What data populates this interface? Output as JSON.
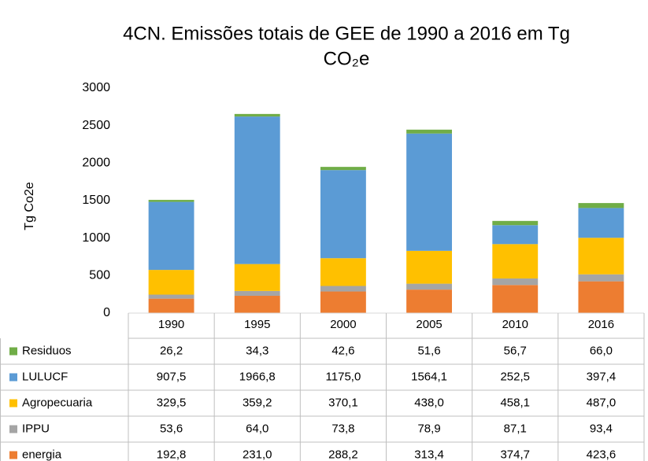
{
  "chart_data": {
    "type": "stacked_bar",
    "title": [
      "4CN. Emissões totais de GEE de 1990 a 2016 em Tg",
      "CO₂e"
    ],
    "y_label": "Tg Co2e",
    "categories": [
      "1990",
      "1995",
      "2000",
      "2005",
      "2010",
      "2016"
    ],
    "ylim": [
      0,
      3000
    ],
    "yticks": [
      0,
      500,
      1000,
      1500,
      2000,
      2500,
      3000
    ],
    "grid": false,
    "series": [
      {
        "name": "energia",
        "color": "#ed7d31",
        "values": [
          192.8,
          231.0,
          288.2,
          313.4,
          374.7,
          423.6
        ],
        "value_labels": [
          "192,8",
          "231,0",
          "288,2",
          "313,4",
          "374,7",
          "423,6"
        ]
      },
      {
        "name": "IPPU",
        "color": "#a5a5a5",
        "values": [
          53.6,
          64.0,
          73.8,
          78.9,
          87.1,
          93.4
        ],
        "value_labels": [
          "53,6",
          "64,0",
          "73,8",
          "78,9",
          "87,1",
          "93,4"
        ]
      },
      {
        "name": "Agropecuaria",
        "color": "#ffc000",
        "values": [
          329.5,
          359.2,
          370.1,
          438.0,
          458.1,
          487.0
        ],
        "value_labels": [
          "329,5",
          "359,2",
          "370,1",
          "438,0",
          "458,1",
          "487,0"
        ]
      },
      {
        "name": "LULUCF",
        "color": "#5b9bd5",
        "values": [
          907.5,
          1966.8,
          1175.0,
          1564.1,
          252.5,
          397.4
        ],
        "value_labels": [
          "907,5",
          "1966,8",
          "1175,0",
          "1564,1",
          "252,5",
          "397,4"
        ]
      },
      {
        "name": "Residuos",
        "color": "#70ad47",
        "values": [
          26.2,
          34.3,
          42.6,
          51.6,
          56.7,
          66.0
        ],
        "value_labels": [
          "26,2",
          "34,3",
          "42,6",
          "51,6",
          "56,7",
          "66,0"
        ]
      }
    ]
  }
}
